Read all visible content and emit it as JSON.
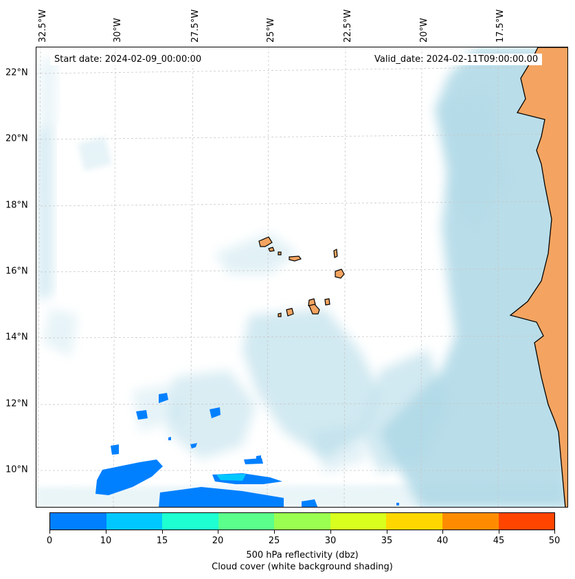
{
  "map": {
    "start_date": "Start date: 2024-02-09_00:00:00",
    "valid_date": "Valid_date: 2024-02-11T09:00:00.00",
    "longitude_labels": [
      "32.5°W",
      "30°W",
      "27.5°W",
      "25°W",
      "22.5°W",
      "20°W",
      "17.5°W"
    ],
    "latitude_labels": [
      "22°N",
      "20°N",
      "18°N",
      "16°N",
      "14°N",
      "12°N",
      "10°N"
    ],
    "land_color": "#f4a460",
    "cloud_color": "#add8e6",
    "precip_color": "#0080ff"
  },
  "colorbar": {
    "ticks": [
      "0",
      "10",
      "15",
      "20",
      "25",
      "30",
      "35",
      "40",
      "45",
      "50"
    ],
    "colors": [
      "#0080ff",
      "#00c8ff",
      "#1effd2",
      "#5aff8c",
      "#9aff50",
      "#d8ff1e",
      "#ffd700",
      "#ff8c00",
      "#ff4500"
    ],
    "label_line1": "500 hPa reflectivity (dbz)",
    "label_line2": "Cloud cover (white background shading)"
  }
}
